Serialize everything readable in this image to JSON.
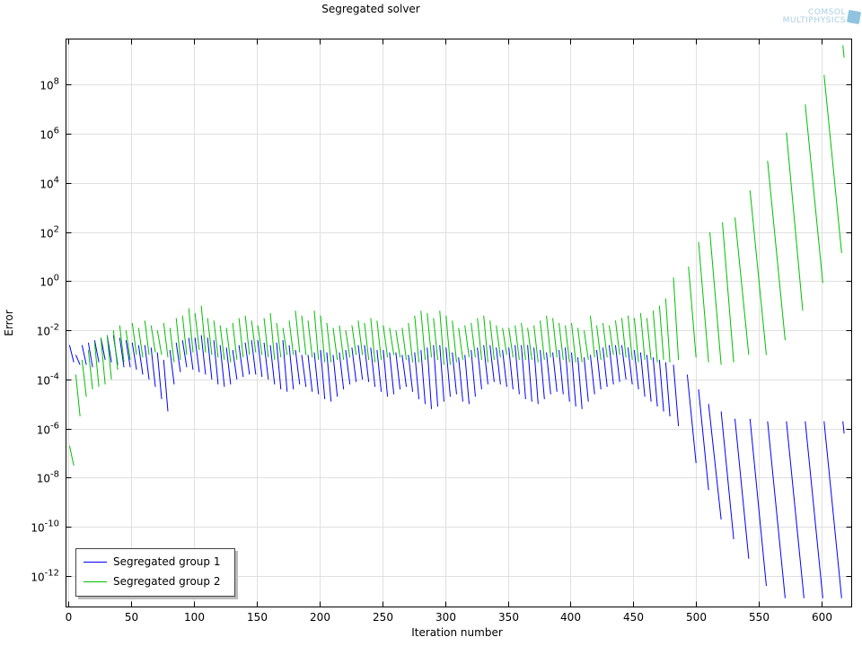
{
  "logo": {
    "line1": "COMSOL",
    "line2": "MULTIPHYSICS"
  },
  "chart_data": {
    "type": "line",
    "title": "Segregated solver",
    "xlabel": "Iteration number",
    "ylabel": "Error",
    "xlim": [
      -2,
      624
    ],
    "ylim_log10": [
      -13.26,
      9.86
    ],
    "yscale": "log",
    "grid": true,
    "x_ticks": [
      0,
      50,
      100,
      150,
      200,
      250,
      300,
      350,
      400,
      450,
      500,
      550,
      600
    ],
    "y_tick_exponents": [
      -12,
      -10,
      -8,
      -6,
      -4,
      -2,
      0,
      2,
      4,
      6,
      8
    ],
    "legend_position": "bottom-left",
    "series": [
      {
        "name": "Segregated group 1",
        "color": "#0000ff",
        "early_cycles": {
          "start": 0,
          "step": 5,
          "peaks_log10": [
            -2.6,
            -3.0,
            -2.6,
            -2.5,
            -2.4,
            -2.3,
            -2.2,
            -2.2,
            -2.3,
            -2.4,
            -2.5,
            -2.6,
            -2.6,
            -2.7,
            -2.9,
            -3.2,
            -2.8,
            -2.5,
            -2.4,
            -2.3,
            -2.3,
            -2.2,
            -2.3,
            -2.4,
            -2.6,
            -2.7,
            -2.8,
            -2.6,
            -2.5,
            -2.4,
            -2.4,
            -2.5,
            -2.6,
            -2.5,
            -2.4,
            -2.6,
            -2.8,
            -3.0,
            -3.0,
            -2.9,
            -2.8,
            -2.9,
            -3.0,
            -2.9,
            -2.8,
            -2.7,
            -2.6,
            -2.6,
            -2.7,
            -2.8,
            -2.8,
            -2.9,
            -2.9,
            -3.0,
            -3.0,
            -2.9,
            -2.8,
            -2.7,
            -2.6,
            -2.6,
            -2.7,
            -2.9,
            -3.1,
            -3.0,
            -2.8,
            -2.7,
            -2.6,
            -2.6,
            -2.7,
            -2.8,
            -2.7,
            -2.6,
            -2.6,
            -2.6,
            -2.7,
            -2.8,
            -2.9,
            -2.9,
            -2.8,
            -2.7,
            -2.9,
            -3.1,
            -3.1,
            -3.0,
            -2.8,
            -2.7,
            -2.6,
            -2.6,
            -2.6,
            -2.7,
            -2.8,
            -2.9,
            -3.0,
            -3.1,
            -3.2,
            -3.3
          ],
          "troughs_log10": [
            -3.3,
            -3.4,
            -3.4,
            -3.5,
            -3.3,
            -3.2,
            -3.3,
            -3.4,
            -3.5,
            -3.5,
            -3.6,
            -3.8,
            -4.0,
            -4.3,
            -4.8,
            -5.3,
            -4.2,
            -3.7,
            -3.5,
            -3.6,
            -3.7,
            -3.8,
            -4.0,
            -4.2,
            -4.3,
            -4.2,
            -4.0,
            -3.9,
            -3.8,
            -3.8,
            -3.9,
            -4.0,
            -4.2,
            -4.4,
            -4.5,
            -4.4,
            -4.2,
            -4.3,
            -4.5,
            -4.6,
            -4.8,
            -4.9,
            -4.7,
            -4.4,
            -4.2,
            -4.1,
            -4.0,
            -4.1,
            -4.3,
            -4.5,
            -4.7,
            -4.6,
            -4.4,
            -4.3,
            -4.5,
            -4.8,
            -5.0,
            -5.2,
            -5.1,
            -4.9,
            -4.7,
            -4.6,
            -4.9,
            -5.0,
            -4.7,
            -4.4,
            -4.2,
            -4.1,
            -4.2,
            -4.3,
            -4.4,
            -4.6,
            -4.8,
            -4.9,
            -5.0,
            -4.8,
            -4.6,
            -4.5,
            -4.6,
            -4.9,
            -5.1,
            -5.2,
            -4.9,
            -4.6,
            -4.4,
            -4.3,
            -4.2,
            -4.1,
            -4.0,
            -4.2,
            -4.4,
            -4.7,
            -4.9,
            -5.1,
            -5.3,
            -5.5
          ]
        },
        "late_cycles": [
          [
            482,
            486,
            -3.4,
            -5.9
          ],
          [
            493,
            500,
            -3.8,
            -7.4
          ],
          [
            502,
            510,
            -4.4,
            -8.5
          ],
          [
            510,
            520,
            -5.0,
            -9.7
          ],
          [
            520,
            530,
            -5.3,
            -10.5
          ],
          [
            531,
            542,
            -5.6,
            -11.3
          ],
          [
            543,
            556,
            -5.6,
            -12.4
          ],
          [
            557,
            571,
            -5.7,
            -12.9
          ],
          [
            572,
            586,
            -5.7,
            -12.9
          ],
          [
            587,
            601,
            -5.7,
            -12.9
          ],
          [
            602,
            616,
            -5.7,
            -12.9
          ],
          [
            617,
            618,
            -5.7,
            -6.2
          ]
        ]
      },
      {
        "name": "Segregated group 2",
        "color": "#00c000",
        "early_cycles": {
          "start": 0,
          "step": 5,
          "peaks_log10": [
            -6.7,
            -3.8,
            -3.2,
            -2.8,
            -2.5,
            -2.3,
            -2.2,
            -2.0,
            -1.8,
            -2.0,
            -1.7,
            -1.9,
            -1.6,
            -1.8,
            -2.0,
            -1.7,
            -1.9,
            -1.5,
            -1.4,
            -1.1,
            -1.3,
            -1.0,
            -1.5,
            -1.6,
            -1.8,
            -1.9,
            -1.7,
            -1.5,
            -1.4,
            -1.6,
            -1.8,
            -1.5,
            -1.3,
            -1.7,
            -1.9,
            -1.6,
            -1.2,
            -1.4,
            -1.6,
            -1.2,
            -1.4,
            -1.7,
            -1.9,
            -1.8,
            -2.0,
            -1.8,
            -1.6,
            -1.7,
            -1.5,
            -1.6,
            -1.8,
            -1.9,
            -2.0,
            -1.9,
            -1.7,
            -1.4,
            -1.2,
            -1.3,
            -1.5,
            -1.2,
            -1.4,
            -1.6,
            -1.9,
            -1.8,
            -1.7,
            -1.5,
            -1.4,
            -1.6,
            -1.8,
            -1.9,
            -1.9,
            -1.8,
            -1.7,
            -1.9,
            -1.8,
            -1.6,
            -1.4,
            -1.5,
            -1.7,
            -1.8,
            -1.7,
            -1.9,
            -2.0,
            -1.4,
            -1.8,
            -1.7,
            -1.8,
            -1.6,
            -1.5,
            -1.4,
            -1.5,
            -1.3,
            -1.5,
            -1.2,
            -1.0,
            -0.7
          ],
          "troughs_log10": [
            -7.5,
            -5.5,
            -4.7,
            -4.4,
            -4.3,
            -4.2,
            -4.0,
            -3.6,
            -3.3,
            -3.2,
            -3.0,
            -3.1,
            -3.0,
            -2.9,
            -3.0,
            -3.1,
            -3.3,
            -3.2,
            -3.0,
            -2.9,
            -2.8,
            -2.9,
            -3.0,
            -3.1,
            -3.2,
            -3.3,
            -3.2,
            -3.1,
            -3.0,
            -2.9,
            -3.0,
            -3.1,
            -3.2,
            -3.1,
            -3.0,
            -3.0,
            -2.9,
            -3.0,
            -3.1,
            -3.2,
            -3.3,
            -3.3,
            -3.2,
            -3.2,
            -3.1,
            -3.0,
            -3.0,
            -3.2,
            -3.3,
            -3.2,
            -3.1,
            -3.0,
            -3.1,
            -3.2,
            -3.3,
            -3.3,
            -3.2,
            -3.1,
            -3.2,
            -3.4,
            -3.4,
            -3.3,
            -3.2,
            -3.1,
            -3.1,
            -3.2,
            -3.3,
            -3.2,
            -3.1,
            -3.0,
            -3.1,
            -3.2,
            -3.2,
            -3.2,
            -3.3,
            -3.2,
            -3.1,
            -3.1,
            -3.2,
            -3.3,
            -3.3,
            -3.3,
            -3.2,
            -3.1,
            -3.2,
            -3.1,
            -3.0,
            -3.0,
            -3.1,
            -3.2,
            -3.3,
            -3.2,
            -3.2,
            -3.3,
            -3.2,
            -3.3
          ]
        },
        "late_cycles": [
          [
            482,
            486,
            0.15,
            -3.2
          ],
          [
            494,
            500,
            0.6,
            -3.1
          ],
          [
            502,
            510,
            1.6,
            -3.3
          ],
          [
            511,
            520,
            2.0,
            -3.4
          ],
          [
            521,
            530,
            2.4,
            -3.3
          ],
          [
            531,
            542,
            2.6,
            -3.0
          ],
          [
            543,
            556,
            3.7,
            -3.0
          ],
          [
            557,
            571,
            4.9,
            -2.4
          ],
          [
            572,
            585,
            6.05,
            -1.2
          ],
          [
            587,
            601,
            7.2,
            -0.07
          ],
          [
            602,
            616,
            8.4,
            1.15
          ],
          [
            617,
            618,
            9.6,
            9.1
          ]
        ]
      }
    ]
  }
}
